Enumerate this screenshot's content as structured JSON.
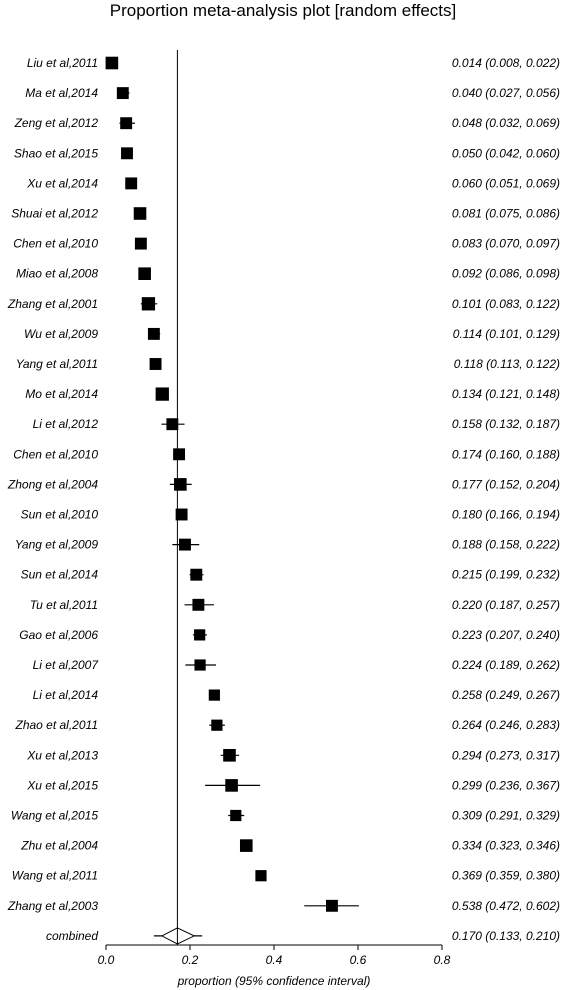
{
  "chart_data": {
    "type": "forest",
    "title": "Proportion meta-analysis plot [random effects]",
    "xlabel": "proportion (95% confidence interval)",
    "xlim": [
      0.0,
      0.8
    ],
    "xticks": [
      "0.0",
      "0.2",
      "0.4",
      "0.6",
      "0.8"
    ],
    "reference_line": 0.17,
    "studies": [
      {
        "name": "Liu et al,2011",
        "est": 0.014,
        "lo": 0.008,
        "hi": 0.022,
        "label": "0.014 (0.008, 0.022)",
        "weight": 0.9
      },
      {
        "name": "Ma et al,2014",
        "est": 0.04,
        "lo": 0.027,
        "hi": 0.056,
        "label": "0.040 (0.027, 0.056)",
        "weight": 0.85
      },
      {
        "name": "Zeng et al,2012",
        "est": 0.048,
        "lo": 0.032,
        "hi": 0.069,
        "label": "0.048 (0.032, 0.069)",
        "weight": 0.85
      },
      {
        "name": "Shao et al,2015",
        "est": 0.05,
        "lo": 0.042,
        "hi": 0.06,
        "label": "0.050 (0.042, 0.060)",
        "weight": 0.85
      },
      {
        "name": "Xu et al,2014",
        "est": 0.06,
        "lo": 0.051,
        "hi": 0.069,
        "label": "0.060 (0.051, 0.069)",
        "weight": 0.85
      },
      {
        "name": "Shuai et al,2012",
        "est": 0.081,
        "lo": 0.075,
        "hi": 0.086,
        "label": "0.081 (0.075, 0.086)",
        "weight": 0.9
      },
      {
        "name": "Chen et al,2010",
        "est": 0.083,
        "lo": 0.07,
        "hi": 0.097,
        "label": "0.083 (0.070, 0.097)",
        "weight": 0.85
      },
      {
        "name": "Miao et al,2008",
        "est": 0.092,
        "lo": 0.086,
        "hi": 0.098,
        "label": "0.092 (0.086, 0.098)",
        "weight": 0.9
      },
      {
        "name": "Zhang et al,2001",
        "est": 0.101,
        "lo": 0.083,
        "hi": 0.122,
        "label": "0.101 (0.083, 0.122)",
        "weight": 0.95
      },
      {
        "name": "Wu et al,2009",
        "est": 0.114,
        "lo": 0.101,
        "hi": 0.129,
        "label": "0.114 (0.101, 0.129)",
        "weight": 0.85
      },
      {
        "name": "Yang et al,2011",
        "est": 0.118,
        "lo": 0.113,
        "hi": 0.122,
        "label": "0.118 (0.113, 0.122)",
        "weight": 0.85
      },
      {
        "name": "Mo et al,2014",
        "est": 0.134,
        "lo": 0.121,
        "hi": 0.148,
        "label": "0.134 (0.121, 0.148)",
        "weight": 0.95
      },
      {
        "name": "Li et al,2012",
        "est": 0.158,
        "lo": 0.132,
        "hi": 0.187,
        "label": "0.158 (0.132, 0.187)",
        "weight": 0.85
      },
      {
        "name": "Chen et al,2010",
        "est": 0.174,
        "lo": 0.16,
        "hi": 0.188,
        "label": "0.174 (0.160, 0.188)",
        "weight": 0.85
      },
      {
        "name": "Zhong et al,2004",
        "est": 0.177,
        "lo": 0.152,
        "hi": 0.204,
        "label": "0.177 (0.152, 0.204)",
        "weight": 0.9
      },
      {
        "name": "Sun et al,2010",
        "est": 0.18,
        "lo": 0.166,
        "hi": 0.194,
        "label": "0.180 (0.166, 0.194)",
        "weight": 0.85
      },
      {
        "name": "Yang et al,2009",
        "est": 0.188,
        "lo": 0.158,
        "hi": 0.222,
        "label": "0.188 (0.158, 0.222)",
        "weight": 0.85
      },
      {
        "name": "Sun et al,2014",
        "est": 0.215,
        "lo": 0.199,
        "hi": 0.232,
        "label": "0.215 (0.199, 0.232)",
        "weight": 0.85
      },
      {
        "name": "Tu et al,2011",
        "est": 0.22,
        "lo": 0.187,
        "hi": 0.257,
        "label": "0.220 (0.187, 0.257)",
        "weight": 0.85
      },
      {
        "name": "Gao et al,2006",
        "est": 0.223,
        "lo": 0.207,
        "hi": 0.24,
        "label": "0.223 (0.207, 0.240)",
        "weight": 0.8
      },
      {
        "name": "Li et al,2007",
        "est": 0.224,
        "lo": 0.189,
        "hi": 0.262,
        "label": "0.224 (0.189, 0.262)",
        "weight": 0.8
      },
      {
        "name": "Li et al,2014",
        "est": 0.258,
        "lo": 0.249,
        "hi": 0.267,
        "label": "0.258 (0.249, 0.267)",
        "weight": 0.8
      },
      {
        "name": "Zhao et al,2011",
        "est": 0.264,
        "lo": 0.246,
        "hi": 0.283,
        "label": "0.264 (0.246, 0.283)",
        "weight": 0.8
      },
      {
        "name": "Xu et al,2013",
        "est": 0.294,
        "lo": 0.273,
        "hi": 0.317,
        "label": "0.294 (0.273, 0.317)",
        "weight": 0.9
      },
      {
        "name": "Xu et al,2015",
        "est": 0.299,
        "lo": 0.236,
        "hi": 0.367,
        "label": "0.299 (0.236, 0.367)",
        "weight": 0.9
      },
      {
        "name": "Wang et al,2015",
        "est": 0.309,
        "lo": 0.291,
        "hi": 0.329,
        "label": "0.309 (0.291, 0.329)",
        "weight": 0.8
      },
      {
        "name": "Zhu et al,2004",
        "est": 0.334,
        "lo": 0.323,
        "hi": 0.346,
        "label": "0.334 (0.323, 0.346)",
        "weight": 0.9
      },
      {
        "name": "Wang et al,2011",
        "est": 0.369,
        "lo": 0.359,
        "hi": 0.38,
        "label": "0.369 (0.359, 0.380)",
        "weight": 0.8
      },
      {
        "name": "Zhang et al,2003",
        "est": 0.538,
        "lo": 0.472,
        "hi": 0.602,
        "label": "0.538 (0.472, 0.602)",
        "weight": 0.85
      }
    ],
    "combined": {
      "name": "combined",
      "est": 0.17,
      "lo": 0.133,
      "hi": 0.21,
      "label": "0.170 (0.133, 0.210)"
    }
  }
}
